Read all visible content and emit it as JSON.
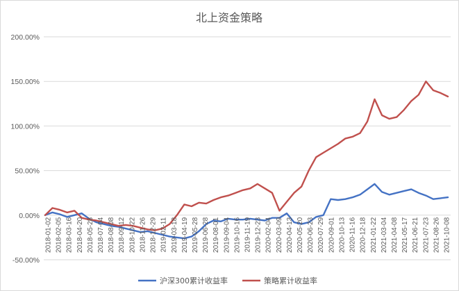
{
  "chart_data": {
    "type": "line",
    "title": "北上资金策略",
    "yticks": [
      "-50.00%",
      "0.00%",
      "50.00%",
      "100.00%",
      "150.00%",
      "200.00%"
    ],
    "ylim": [
      -50,
      200
    ],
    "grid": "horizontal",
    "legend_placement": "bottom",
    "x_tick_labels": [
      "2018-01-02",
      "2018-02-05",
      "2018-03-16",
      "2018-04-20",
      "2018-05-28",
      "2018-07-04",
      "2018-08-08",
      "2018-09-12",
      "2018-10-22",
      "2018-11-26",
      "2018-12-29",
      "2019-02-11",
      "2019-03-18",
      "2019-04-19",
      "2019-05-28",
      "2019-06-28",
      "2019-08-01",
      "2019-09-04",
      "2019-10-16",
      "2019-11-19",
      "2019-12-23",
      "2020-02-04",
      "2020-03-09",
      "2020-04-13",
      "2020-05-20",
      "2020-06-23",
      "2020-07-29",
      "2020-09-01",
      "2020-10-13",
      "2020-11-16",
      "2020-12-18",
      "2021-01-22",
      "2021-03-04",
      "2021-04-08",
      "2021-05-17",
      "2021-06-21",
      "2021-07-23",
      "2021-08-26",
      "2021-10-08"
    ],
    "series": [
      {
        "name": "沪深300累计收益率",
        "color": "#4472c4",
        "values": [
          0,
          3,
          1,
          -2,
          0,
          2,
          -4,
          -8,
          -10,
          -12,
          -13,
          -15,
          -17,
          -19,
          -18,
          -20,
          -22,
          -24,
          -25,
          -26,
          -24,
          -18,
          -10,
          -6,
          -7,
          -4,
          -5,
          -5,
          -4,
          -5,
          -6,
          -3,
          -3,
          2,
          -8,
          -10,
          -8,
          -2,
          0,
          18,
          17,
          18,
          20,
          23,
          29,
          35,
          26,
          23,
          25,
          27,
          29,
          25,
          22,
          18,
          19,
          20
        ]
      },
      {
        "name": "策略累计收益率",
        "color": "#c0504d",
        "values": [
          0,
          8,
          6,
          3,
          5,
          -3,
          -5,
          -6,
          -8,
          -10,
          -12,
          -11,
          -12,
          -14,
          -16,
          -17,
          -15,
          -10,
          0,
          12,
          10,
          14,
          13,
          17,
          20,
          22,
          25,
          28,
          30,
          35,
          30,
          25,
          5,
          15,
          25,
          32,
          50,
          65,
          70,
          75,
          80,
          86,
          88,
          92,
          105,
          130,
          112,
          108,
          110,
          118,
          128,
          135,
          150,
          140,
          137,
          133
        ]
      }
    ]
  }
}
